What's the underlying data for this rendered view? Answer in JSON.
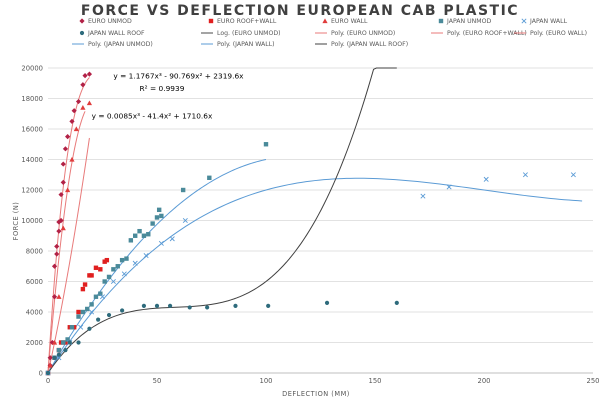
{
  "chart_data": {
    "type": "scatter",
    "title": "FORCE VS DEFLECTION EUROPEAN CAB PLASTIC",
    "xlabel": "DEFLECTION (MM)",
    "ylabel": "FORCE (N)",
    "xlim": [
      0,
      250
    ],
    "ylim": [
      0,
      20000
    ],
    "xticks": [
      0,
      50,
      100,
      150,
      200,
      250
    ],
    "yticks": [
      0,
      2000,
      4000,
      6000,
      8000,
      10000,
      12000,
      14000,
      16000,
      18000,
      20000
    ],
    "grid": "horizontal",
    "legend_position": "top",
    "series": [
      {
        "name": "EURO UNMOD",
        "marker": "diamond",
        "color": "#b22146",
        "points": [
          [
            0,
            0
          ],
          [
            1,
            500
          ],
          [
            1,
            1000
          ],
          [
            2,
            2000
          ],
          [
            3,
            5000
          ],
          [
            3,
            7000
          ],
          [
            4,
            7800
          ],
          [
            4,
            8300
          ],
          [
            5,
            9300
          ],
          [
            5,
            9900
          ],
          [
            6,
            10000
          ],
          [
            6,
            11700
          ],
          [
            7,
            12500
          ],
          [
            7,
            13700
          ],
          [
            8,
            14700
          ],
          [
            9,
            15500
          ],
          [
            11,
            16500
          ],
          [
            12,
            17200
          ],
          [
            14,
            17800
          ],
          [
            16,
            18900
          ],
          [
            17,
            19500
          ],
          [
            19,
            19600
          ]
        ]
      },
      {
        "name": "EURO ROOF+WALL",
        "marker": "square",
        "color": "#e01f1f",
        "points": [
          [
            0,
            0
          ],
          [
            3,
            1000
          ],
          [
            5,
            1500
          ],
          [
            6,
            2000
          ],
          [
            8,
            2000
          ],
          [
            10,
            3000
          ],
          [
            12,
            3000
          ],
          [
            14,
            4000
          ],
          [
            16,
            5500
          ],
          [
            17,
            5800
          ],
          [
            19,
            6400
          ],
          [
            20,
            6400
          ],
          [
            22,
            6900
          ],
          [
            24,
            6800
          ],
          [
            26,
            7300
          ],
          [
            27,
            7400
          ]
        ]
      },
      {
        "name": "EURO WALL",
        "marker": "triangle",
        "color": "#e03c3c",
        "points": [
          [
            0,
            0
          ],
          [
            1,
            500
          ],
          [
            3,
            2000
          ],
          [
            5,
            5000
          ],
          [
            7,
            9500
          ],
          [
            9,
            12000
          ],
          [
            11,
            14000
          ],
          [
            13,
            16000
          ],
          [
            16,
            17400
          ],
          [
            19,
            17700
          ]
        ]
      },
      {
        "name": "JAPAN UNMOD",
        "marker": "square",
        "color": "#4a8a9a",
        "points": [
          [
            0,
            0
          ],
          [
            3,
            1000
          ],
          [
            5,
            1500
          ],
          [
            7,
            2000
          ],
          [
            9,
            2200
          ],
          [
            11,
            3000
          ],
          [
            14,
            3700
          ],
          [
            16,
            4000
          ],
          [
            18,
            4200
          ],
          [
            20,
            4500
          ],
          [
            22,
            5000
          ],
          [
            24,
            5200
          ],
          [
            26,
            6000
          ],
          [
            28,
            6300
          ],
          [
            30,
            6800
          ],
          [
            32,
            7000
          ],
          [
            34,
            7400
          ],
          [
            36,
            7500
          ],
          [
            38,
            8700
          ],
          [
            40,
            9000
          ],
          [
            42,
            9300
          ],
          [
            44,
            9000
          ],
          [
            46,
            9100
          ],
          [
            48,
            9800
          ],
          [
            50,
            10200
          ],
          [
            51,
            10700
          ],
          [
            52,
            10300
          ],
          [
            62,
            12000
          ],
          [
            74,
            12800
          ],
          [
            100,
            15000
          ]
        ]
      },
      {
        "name": "JAPAN WALL",
        "marker": "x",
        "color": "#5b9bd5",
        "points": [
          [
            0,
            0
          ],
          [
            5,
            1000
          ],
          [
            10,
            2000
          ],
          [
            15,
            3000
          ],
          [
            20,
            4000
          ],
          [
            25,
            5000
          ],
          [
            30,
            6000
          ],
          [
            35,
            6500
          ],
          [
            40,
            7200
          ],
          [
            45,
            7700
          ],
          [
            52,
            8500
          ],
          [
            57,
            8800
          ],
          [
            63,
            10000
          ],
          [
            172,
            11600
          ],
          [
            184,
            12200
          ],
          [
            201,
            12700
          ],
          [
            219,
            13000
          ],
          [
            241,
            13000
          ]
        ]
      },
      {
        "name": "JAPAN WALL ROOF",
        "marker": "circle",
        "color": "#2e6b7c",
        "points": [
          [
            0,
            0
          ],
          [
            3,
            1000
          ],
          [
            5,
            1200
          ],
          [
            8,
            1500
          ],
          [
            10,
            2000
          ],
          [
            14,
            2000
          ],
          [
            19,
            2900
          ],
          [
            23,
            3500
          ],
          [
            28,
            3800
          ],
          [
            34,
            4100
          ],
          [
            44,
            4400
          ],
          [
            50,
            4400
          ],
          [
            56,
            4400
          ],
          [
            65,
            4300
          ],
          [
            73,
            4300
          ],
          [
            86,
            4400
          ],
          [
            101,
            4400
          ],
          [
            128,
            4600
          ],
          [
            160,
            4600
          ]
        ]
      }
    ],
    "trendlines": [
      {
        "name": "Log. (EURO UNMOD)",
        "kind": "log",
        "color": "#4a4a4a"
      },
      {
        "name": "Poly. (EURO UNMOD)",
        "kind": "poly",
        "color": "#e87a7a",
        "coef": [
          0,
          2319.6,
          -90.769,
          1.1767
        ],
        "range": [
          0,
          19
        ]
      },
      {
        "name": "Poly. (EURO ROOF+WALL)",
        "kind": "poly",
        "color": "#e87a7a",
        "coef": [
          0,
          1710.6,
          -41.4,
          0.0085
        ],
        "range": [
          0,
          17
        ]
      },
      {
        "name": "Poly. (EURO WALL)",
        "kind": "poly",
        "color": "#e87a7a",
        "coef": [
          0,
          640,
          9,
          0
        ],
        "range": [
          0,
          19
        ]
      },
      {
        "name": "Poly. (JAPAN UNMOD)",
        "kind": "poly",
        "color": "#5b9bd5",
        "coef": [
          0,
          250,
          -1.1,
          0
        ],
        "range": [
          0,
          100
        ]
      },
      {
        "name": "Poly. (JAPAN WALL)",
        "kind": "poly",
        "color": "#5b9bd5",
        "coef": [
          0,
          220,
          -1.2,
          0.002
        ],
        "range": [
          0,
          245
        ]
      },
      {
        "name": "Poly. (JAPAN WALL ROOF)",
        "kind": "poly",
        "color": "#404040",
        "coef": [
          0,
          210,
          -3.5,
          0.02
        ],
        "range": [
          0,
          160
        ]
      }
    ],
    "annotations": [
      {
        "text": "y = 1.1767x³ - 90.769x² + 2319.6x",
        "x": 30,
        "y": 19300
      },
      {
        "text": "R² = 0.9939",
        "x": 42,
        "y": 18500
      },
      {
        "text": "y = 0.0085x³ - 41.4x² + 1710.6x",
        "x": 20,
        "y": 16700
      }
    ]
  }
}
